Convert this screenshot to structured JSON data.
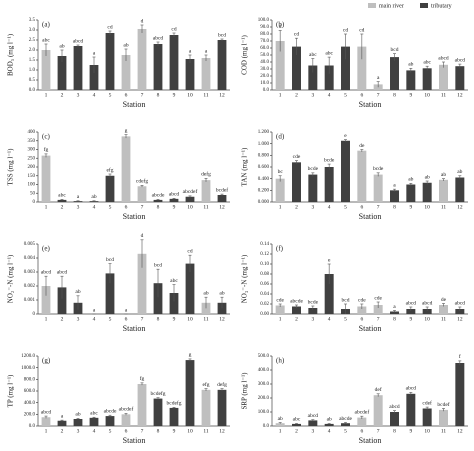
{
  "legend": [
    {
      "name": "main river",
      "color": "#bfbfbf"
    },
    {
      "name": "tributary",
      "color": "#404040"
    }
  ],
  "chart_data": [
    {
      "type": "bar",
      "panel": "(a)",
      "ylabel": "BOD₅ (mg l⁻¹)",
      "xlabel": "Station",
      "categories": [
        "1",
        "2",
        "3",
        "4",
        "5",
        "6",
        "7",
        "8",
        "9",
        "10",
        "11",
        "12"
      ],
      "values": [
        2.0,
        1.7,
        2.2,
        1.25,
        2.85,
        1.75,
        3.05,
        2.3,
        2.75,
        1.55,
        1.6,
        2.5
      ],
      "errors": [
        0.3,
        0.3,
        0.05,
        0.4,
        0.1,
        0.3,
        0.2,
        0.1,
        0.1,
        0.2,
        0.15,
        0.05
      ],
      "letters": [
        "abc",
        "ab",
        "abcd",
        "a",
        "cd",
        "ab",
        "d",
        "abcd",
        "cd",
        "a",
        "a",
        "bcd"
      ],
      "bar_colors": [
        "#bfbfbf",
        "#404040",
        "#404040",
        "#404040",
        "#404040",
        "#bfbfbf",
        "#bfbfbf",
        "#404040",
        "#404040",
        "#404040",
        "#bfbfbf",
        "#404040"
      ],
      "ylim": [
        0,
        3.5
      ],
      "yticks": [
        {
          "value": 0,
          "label": "0.0"
        },
        0.5,
        {
          "value": 1,
          "label": "1.0"
        },
        1.5,
        {
          "value": 2,
          "label": "2.0"
        },
        2.5,
        {
          "value": 3,
          "label": "3.0"
        },
        3.5
      ]
    },
    {
      "type": "bar",
      "panel": "(b)",
      "ylabel": "COD (mg l⁻¹)",
      "xlabel": "Station",
      "categories": [
        "1",
        "2",
        "3",
        "4",
        "5",
        "6",
        "7",
        "8",
        "9",
        "10",
        "11",
        "12"
      ],
      "values": [
        70,
        62,
        35,
        35,
        62,
        62,
        8,
        47,
        28,
        31,
        36,
        34
      ],
      "errors": [
        15,
        12,
        10,
        12,
        18,
        18,
        4,
        5,
        3,
        3,
        4,
        3
      ],
      "letters": [
        "d",
        "cd",
        "abc",
        "abc",
        "cd",
        "cd",
        "a",
        "bcd",
        "ab",
        "abc",
        "abcd",
        "abcd"
      ],
      "bar_colors": [
        "#bfbfbf",
        "#404040",
        "#404040",
        "#404040",
        "#404040",
        "#bfbfbf",
        "#bfbfbf",
        "#404040",
        "#404040",
        "#404040",
        "#bfbfbf",
        "#404040"
      ],
      "ylim": [
        0,
        100
      ],
      "yticks": [
        {
          "value": 0,
          "label": "0.0"
        },
        {
          "value": 10,
          "label": "10.0"
        },
        {
          "value": 20,
          "label": "20.0"
        },
        {
          "value": 30,
          "label": "30.0"
        },
        {
          "value": 40,
          "label": "40.0"
        },
        {
          "value": 50,
          "label": "50.0"
        },
        {
          "value": 60,
          "label": "60.0"
        },
        {
          "value": 70,
          "label": "70.0"
        },
        {
          "value": 80,
          "label": "80.0"
        },
        {
          "value": 90,
          "label": "90.0"
        },
        {
          "value": 100,
          "label": "100.0"
        }
      ]
    },
    {
      "type": "bar",
      "panel": "(c)",
      "ylabel": "TSS (mg l⁻¹)",
      "xlabel": "Station",
      "categories": [
        "1",
        "2",
        "3",
        "4",
        "5",
        "6",
        "7",
        "8",
        "9",
        "10",
        "11",
        "12"
      ],
      "values": [
        265,
        12,
        5,
        5,
        150,
        375,
        90,
        12,
        18,
        30,
        125,
        40
      ],
      "errors": [
        10,
        3,
        2,
        2,
        10,
        10,
        5,
        3,
        3,
        5,
        10,
        5
      ],
      "letters": [
        "fg",
        "abc",
        "a",
        "ab",
        "efg",
        "g",
        "cdefg",
        "abcde",
        "abcd",
        "abcdef",
        "defg",
        "bcdef"
      ],
      "bar_colors": [
        "#bfbfbf",
        "#404040",
        "#404040",
        "#404040",
        "#404040",
        "#bfbfbf",
        "#bfbfbf",
        "#404040",
        "#404040",
        "#404040",
        "#bfbfbf",
        "#404040"
      ],
      "ylim": [
        0,
        400
      ],
      "yticks": [
        0,
        50,
        100,
        150,
        200,
        250,
        300,
        350,
        400
      ]
    },
    {
      "type": "bar",
      "panel": "(d)",
      "ylabel": "TAN (mg l⁻¹)",
      "xlabel": "Station",
      "categories": [
        "1",
        "2",
        "3",
        "4",
        "5",
        "6",
        "7",
        "8",
        "9",
        "10",
        "11",
        "12"
      ],
      "values": [
        0.4,
        0.68,
        0.47,
        0.6,
        1.05,
        0.88,
        0.47,
        0.2,
        0.3,
        0.33,
        0.38,
        0.42
      ],
      "errors": [
        0.05,
        0.03,
        0.03,
        0.05,
        0.02,
        0.02,
        0.03,
        0.02,
        0.02,
        0.03,
        0.02,
        0.03
      ],
      "letters": [
        "bc",
        "cde",
        "bcde",
        "bcde",
        "e",
        "de",
        "bcde",
        "a",
        "ab",
        "ab",
        "ab",
        "ab"
      ],
      "bar_colors": [
        "#bfbfbf",
        "#404040",
        "#404040",
        "#404040",
        "#404040",
        "#bfbfbf",
        "#bfbfbf",
        "#404040",
        "#404040",
        "#404040",
        "#bfbfbf",
        "#404040"
      ],
      "ylim": [
        0,
        1.2
      ],
      "yticks": [
        {
          "value": 0,
          "label": "0.000"
        },
        {
          "value": 0.2,
          "label": "0.200"
        },
        {
          "value": 0.4,
          "label": "0.400"
        },
        {
          "value": 0.6,
          "label": "0.600"
        },
        {
          "value": 0.8,
          "label": "0.800"
        },
        {
          "value": 1,
          "label": "1.000"
        },
        {
          "value": 1.2,
          "label": "1.200"
        }
      ]
    },
    {
      "type": "bar",
      "panel": "(e)",
      "ylabel": "NO₂⁻-N (mg l⁻¹)",
      "xlabel": "Station",
      "categories": [
        "1",
        "2",
        "3",
        "4",
        "5",
        "6",
        "7",
        "8",
        "9",
        "10",
        "11",
        "12"
      ],
      "values": [
        0.002,
        0.0019,
        0.0008,
        0,
        0.0029,
        0,
        0.0043,
        0.0022,
        0.0015,
        0.0036,
        0.0008,
        0.0008
      ],
      "errors": [
        0.0007,
        0.0008,
        0.0005,
        0,
        0.0007,
        0,
        0.001,
        0.001,
        0.0006,
        0.0006,
        0.0004,
        0.0004
      ],
      "letters": [
        "abcd",
        "abcd",
        "ab",
        "a",
        "bcd",
        "a",
        "d",
        "bcd",
        "abc",
        "cd",
        "ab",
        "ab"
      ],
      "bar_colors": [
        "#bfbfbf",
        "#404040",
        "#404040",
        "#404040",
        "#404040",
        "#bfbfbf",
        "#bfbfbf",
        "#404040",
        "#404040",
        "#404040",
        "#bfbfbf",
        "#404040"
      ],
      "ylim": [
        0,
        0.005
      ],
      "yticks": [
        0,
        0.001,
        0.002,
        0.003,
        0.004,
        0.005
      ]
    },
    {
      "type": "bar",
      "panel": "(f)",
      "ylabel": "NO₃⁻-N (mg l⁻¹)",
      "xlabel": "Station",
      "categories": [
        "1",
        "2",
        "3",
        "4",
        "5",
        "6",
        "7",
        "8",
        "9",
        "10",
        "11",
        "12"
      ],
      "values": [
        0.017,
        0.015,
        0.012,
        0.08,
        0.01,
        0.015,
        0.018,
        0.005,
        0.01,
        0.01,
        0.018,
        0.01
      ],
      "errors": [
        0.003,
        0.003,
        0.004,
        0.02,
        0.01,
        0.005,
        0.006,
        0.002,
        0.004,
        0.004,
        0.003,
        0.004
      ],
      "letters": [
        "cde",
        "abcde",
        "bcde",
        "e",
        "bcd",
        "cde",
        "cde",
        "a",
        "abcd",
        "abcd",
        "de",
        "abcd"
      ],
      "bar_colors": [
        "#bfbfbf",
        "#404040",
        "#404040",
        "#404040",
        "#404040",
        "#bfbfbf",
        "#bfbfbf",
        "#404040",
        "#404040",
        "#404040",
        "#bfbfbf",
        "#404040"
      ],
      "ylim": [
        0,
        0.14
      ],
      "yticks": [
        {
          "value": 0,
          "label": "0.00"
        },
        0.02,
        0.04,
        0.06,
        0.08,
        {
          "value": 0.1,
          "label": "0.10"
        },
        0.12,
        0.14
      ]
    },
    {
      "type": "bar",
      "panel": "(g)",
      "ylabel": "TP (mg l⁻¹)",
      "xlabel": "Station",
      "categories": [
        "1",
        "2",
        "3",
        "4",
        "5",
        "6",
        "7",
        "8",
        "9",
        "10",
        "11",
        "12"
      ],
      "values": [
        150,
        90,
        120,
        140,
        170,
        200,
        720,
        470,
        310,
        1130,
        620,
        620
      ],
      "errors": [
        20,
        10,
        10,
        10,
        15,
        15,
        20,
        15,
        10,
        20,
        20,
        20
      ],
      "letters": [
        "abcd",
        "a",
        "ab",
        "abc",
        "abcde",
        "abcdef",
        "fg",
        "bcdefg",
        "bcdefg",
        "g",
        "efg",
        "defg"
      ],
      "bar_colors": [
        "#bfbfbf",
        "#404040",
        "#404040",
        "#404040",
        "#404040",
        "#bfbfbf",
        "#bfbfbf",
        "#404040",
        "#404040",
        "#404040",
        "#bfbfbf",
        "#404040"
      ],
      "ylim": [
        0,
        1200
      ],
      "yticks": [
        {
          "value": 0,
          "label": "0.0"
        },
        {
          "value": 200,
          "label": "200.0"
        },
        {
          "value": 400,
          "label": "400.0"
        },
        {
          "value": 600,
          "label": "600.0"
        },
        {
          "value": 800,
          "label": "800.0"
        },
        {
          "value": 1000,
          "label": "1000.0"
        },
        {
          "value": 1200,
          "label": "1200.0"
        }
      ]
    },
    {
      "type": "bar",
      "panel": "(h)",
      "ylabel": "SRP (mg l⁻¹)",
      "xlabel": "Station",
      "categories": [
        "1",
        "2",
        "3",
        "4",
        "5",
        "6",
        "7",
        "8",
        "9",
        "10",
        "11",
        "12"
      ],
      "values": [
        20,
        15,
        40,
        15,
        20,
        60,
        220,
        100,
        230,
        125,
        115,
        450
      ],
      "errors": [
        5,
        3,
        5,
        3,
        5,
        10,
        10,
        10,
        10,
        10,
        10,
        15
      ],
      "letters": [
        "ab",
        "abc",
        "abcd",
        "ab",
        "abcde",
        "abcdef",
        "def",
        "abcd",
        "abcd",
        "cdef",
        "bcdef",
        "f"
      ],
      "bar_colors": [
        "#bfbfbf",
        "#404040",
        "#404040",
        "#404040",
        "#404040",
        "#bfbfbf",
        "#bfbfbf",
        "#404040",
        "#404040",
        "#404040",
        "#bfbfbf",
        "#404040"
      ],
      "ylim": [
        0,
        500
      ],
      "yticks": [
        {
          "value": 0,
          "label": "0.0"
        },
        {
          "value": 100,
          "label": "100.0"
        },
        {
          "value": 200,
          "label": "200.0"
        },
        {
          "value": 300,
          "label": "300.0"
        },
        {
          "value": 400,
          "label": "400.0"
        },
        {
          "value": 500,
          "label": "500.0"
        }
      ]
    }
  ]
}
